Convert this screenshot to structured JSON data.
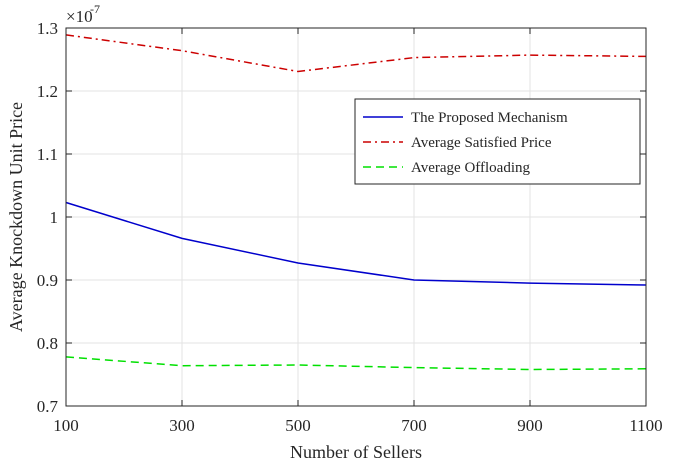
{
  "chart_data": {
    "type": "line",
    "xlabel": "Number of Sellers",
    "ylabel": "Average Knockdown Unit Price",
    "y_exponent_label": "×10",
    "y_exponent_power": "-7",
    "xlim": [
      100,
      1100
    ],
    "ylim": [
      0.7,
      1.3
    ],
    "x_ticks": [
      100,
      300,
      500,
      700,
      900,
      1100
    ],
    "y_ticks": [
      0.7,
      0.8,
      0.9,
      1.0,
      1.1,
      1.2,
      1.3
    ],
    "x_tick_labels": [
      "100",
      "300",
      "500",
      "700",
      "900",
      "1100"
    ],
    "y_tick_labels": [
      "0.7",
      "0.8",
      "0.9",
      "1",
      "1.1",
      "1.2",
      "1.3"
    ],
    "grid": true,
    "legend_position": "upper-right",
    "x": [
      100,
      300,
      500,
      700,
      900,
      1100
    ],
    "series": [
      {
        "name": "The Proposed Mechanism",
        "values": [
          1.023,
          0.966,
          0.927,
          0.9,
          0.895,
          0.892
        ],
        "color": "#0000cc",
        "dash": "solid"
      },
      {
        "name": "Average Satisfied Price",
        "values": [
          1.289,
          1.264,
          1.231,
          1.253,
          1.257,
          1.255
        ],
        "color": "#cc0000",
        "dash": "dashdot"
      },
      {
        "name": "Average Offloading",
        "values": [
          0.778,
          0.764,
          0.765,
          0.761,
          0.758,
          0.759
        ],
        "color": "#00e000",
        "dash": "dashed"
      }
    ]
  }
}
